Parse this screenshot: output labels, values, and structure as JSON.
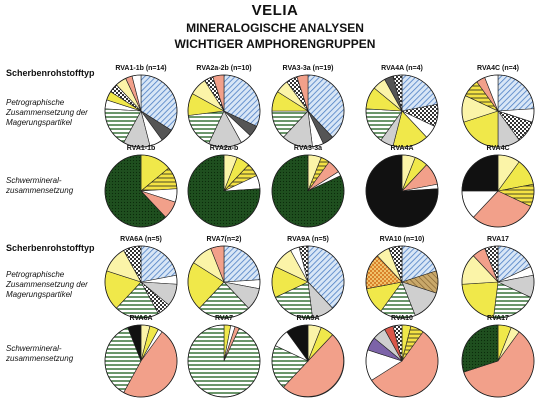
{
  "page": {
    "title": "VELIA",
    "subtitle1": "MINERALOGISCHE ANALYSEN",
    "subtitle2": "WICHTIGER AMPHORENGRUPPEN",
    "section_header": "Scherbenrohstofftyp",
    "row_labels": {
      "petro": [
        "Petrographische",
        "Zusammensetzung der",
        "Magerungspartikel"
      ],
      "heavy": [
        "Schwermineral-",
        "zusammensetzung"
      ]
    }
  },
  "legend_fills": {
    "blue_hatch": "#7fa6d8",
    "white": "#ffffff",
    "dark_green": "#1d4d1d",
    "green_stripe": "#5a8a5a",
    "gray": "#cfcfcf",
    "dark_gray": "#555555",
    "black": "#111111",
    "yellow": "#f0e84a",
    "pale_yellow": "#fbf4a8",
    "yellow_hatch": "#e3cf3a",
    "salmon": "#f2a08a",
    "orange": "#e59b3a",
    "check": "#8a8a8a",
    "tan": "#b8955a",
    "purple": "#7c63a8",
    "red": "#d9574a"
  },
  "chart_data": [
    {
      "type": "pie",
      "label": "RVA1-1b (n=14)",
      "slices": [
        {
          "fill": "blue_hatch",
          "value": 0.34
        },
        {
          "fill": "dark_gray",
          "value": 0.06
        },
        {
          "fill": "white",
          "value": 0.06
        },
        {
          "fill": "gray",
          "value": 0.12
        },
        {
          "fill": "green_stripe",
          "value": 0.18
        },
        {
          "fill": "white",
          "value": 0.04
        },
        {
          "fill": "yellow",
          "value": 0.04
        },
        {
          "fill": "check",
          "value": 0.04
        },
        {
          "fill": "pale_yellow",
          "value": 0.05
        },
        {
          "fill": "salmon",
          "value": 0.03
        },
        {
          "fill": "white",
          "value": 0.04
        }
      ]
    },
    {
      "type": "pie",
      "label": "RVA2a-2b (n=10)",
      "slices": [
        {
          "fill": "blue_hatch",
          "value": 0.32
        },
        {
          "fill": "dark_gray",
          "value": 0.05
        },
        {
          "fill": "white",
          "value": 0.05
        },
        {
          "fill": "gray",
          "value": 0.15
        },
        {
          "fill": "green_stripe",
          "value": 0.16
        },
        {
          "fill": "yellow",
          "value": 0.1
        },
        {
          "fill": "pale_yellow",
          "value": 0.08
        },
        {
          "fill": "check",
          "value": 0.04
        },
        {
          "fill": "salmon",
          "value": 0.05
        }
      ]
    },
    {
      "type": "pie",
      "label": "RVA3-3a (n=19)",
      "slices": [
        {
          "fill": "blue_hatch",
          "value": 0.38
        },
        {
          "fill": "dark_gray",
          "value": 0.05
        },
        {
          "fill": "white",
          "value": 0.05
        },
        {
          "fill": "gray",
          "value": 0.14
        },
        {
          "fill": "green_stripe",
          "value": 0.13
        },
        {
          "fill": "yellow",
          "value": 0.09
        },
        {
          "fill": "pale_yellow",
          "value": 0.06
        },
        {
          "fill": "check",
          "value": 0.05
        },
        {
          "fill": "salmon",
          "value": 0.05
        }
      ]
    },
    {
      "type": "pie",
      "label": "RVA4A (n=4)",
      "slices": [
        {
          "fill": "blue_hatch",
          "value": 0.22
        },
        {
          "fill": "check",
          "value": 0.1
        },
        {
          "fill": "white",
          "value": 0.06
        },
        {
          "fill": "yellow",
          "value": 0.16
        },
        {
          "fill": "gray",
          "value": 0.06
        },
        {
          "fill": "green_stripe",
          "value": 0.16
        },
        {
          "fill": "yellow",
          "value": 0.1
        },
        {
          "fill": "pale_yellow",
          "value": 0.06
        },
        {
          "fill": "dark_gray",
          "value": 0.04
        },
        {
          "fill": "check",
          "value": 0.04
        }
      ]
    },
    {
      "type": "pie",
      "label": "RVA4C (n=4)",
      "slices": [
        {
          "fill": "blue_hatch",
          "value": 0.24
        },
        {
          "fill": "white",
          "value": 0.06
        },
        {
          "fill": "check",
          "value": 0.1
        },
        {
          "fill": "gray",
          "value": 0.1
        },
        {
          "fill": "yellow",
          "value": 0.2
        },
        {
          "fill": "pale_yellow",
          "value": 0.12
        },
        {
          "fill": "yellow_hatch",
          "value": 0.08
        },
        {
          "fill": "salmon",
          "value": 0.04
        },
        {
          "fill": "white",
          "value": 0.06
        }
      ]
    },
    {
      "type": "pie",
      "label": "RVA1-1b",
      "slices": [
        {
          "fill": "yellow",
          "value": 0.14
        },
        {
          "fill": "yellow_hatch",
          "value": 0.1
        },
        {
          "fill": "white",
          "value": 0.06
        },
        {
          "fill": "salmon",
          "value": 0.08
        },
        {
          "fill": "dark_green",
          "value": 0.62
        }
      ]
    },
    {
      "type": "pie",
      "label": "RVA2a-b",
      "slices": [
        {
          "fill": "pale_yellow",
          "value": 0.06
        },
        {
          "fill": "yellow",
          "value": 0.06
        },
        {
          "fill": "yellow_hatch",
          "value": 0.06
        },
        {
          "fill": "white",
          "value": 0.06
        },
        {
          "fill": "dark_green",
          "value": 0.76
        }
      ]
    },
    {
      "type": "pie",
      "label": "RVA3-3a",
      "slices": [
        {
          "fill": "pale_yellow",
          "value": 0.06
        },
        {
          "fill": "yellow_hatch",
          "value": 0.04
        },
        {
          "fill": "salmon",
          "value": 0.06
        },
        {
          "fill": "white",
          "value": 0.02
        },
        {
          "fill": "dark_green",
          "value": 0.82
        }
      ]
    },
    {
      "type": "pie",
      "label": "RVA4A",
      "slices": [
        {
          "fill": "pale_yellow",
          "value": 0.06
        },
        {
          "fill": "yellow",
          "value": 0.06
        },
        {
          "fill": "salmon",
          "value": 0.1
        },
        {
          "fill": "white",
          "value": 0.02
        },
        {
          "fill": "black",
          "value": 0.76
        }
      ]
    },
    {
      "type": "pie",
      "label": "RVA4C",
      "slices": [
        {
          "fill": "pale_yellow",
          "value": 0.1
        },
        {
          "fill": "yellow",
          "value": 0.12
        },
        {
          "fill": "yellow_hatch",
          "value": 0.1
        },
        {
          "fill": "salmon",
          "value": 0.3
        },
        {
          "fill": "white",
          "value": 0.13
        },
        {
          "fill": "black",
          "value": 0.25
        }
      ]
    },
    {
      "type": "pie",
      "label": "RVA6A (n=5)",
      "slices": [
        {
          "fill": "blue_hatch",
          "value": 0.22
        },
        {
          "fill": "white",
          "value": 0.04
        },
        {
          "fill": "gray",
          "value": 0.1
        },
        {
          "fill": "check",
          "value": 0.06
        },
        {
          "fill": "green_stripe",
          "value": 0.2
        },
        {
          "fill": "yellow",
          "value": 0.18
        },
        {
          "fill": "pale_yellow",
          "value": 0.12
        },
        {
          "fill": "check",
          "value": 0.08
        }
      ]
    },
    {
      "type": "pie",
      "label": "RVA7(n=2)",
      "slices": [
        {
          "fill": "blue_hatch",
          "value": 0.24
        },
        {
          "fill": "white",
          "value": 0.04
        },
        {
          "fill": "gray",
          "value": 0.1
        },
        {
          "fill": "green_stripe",
          "value": 0.24
        },
        {
          "fill": "yellow",
          "value": 0.22
        },
        {
          "fill": "pale_yellow",
          "value": 0.1
        },
        {
          "fill": "salmon",
          "value": 0.06
        }
      ]
    },
    {
      "type": "pie",
      "label": "RVA9A (n=5)",
      "slices": [
        {
          "fill": "blue_hatch",
          "value": 0.38
        },
        {
          "fill": "gray",
          "value": 0.1
        },
        {
          "fill": "green_stripe",
          "value": 0.2
        },
        {
          "fill": "yellow",
          "value": 0.14
        },
        {
          "fill": "pale_yellow",
          "value": 0.1
        },
        {
          "fill": "white",
          "value": 0.04
        },
        {
          "fill": "check",
          "value": 0.04
        }
      ]
    },
    {
      "type": "pie",
      "label": "RVA10 (n=10)",
      "slices": [
        {
          "fill": "blue_hatch",
          "value": 0.2
        },
        {
          "fill": "tan",
          "value": 0.1
        },
        {
          "fill": "gray",
          "value": 0.14
        },
        {
          "fill": "green_stripe",
          "value": 0.16
        },
        {
          "fill": "yellow",
          "value": 0.12
        },
        {
          "fill": "orange",
          "value": 0.16
        },
        {
          "fill": "pale_yellow",
          "value": 0.06
        },
        {
          "fill": "check",
          "value": 0.06
        }
      ]
    },
    {
      "type": "pie",
      "label": "RVA17",
      "slices": [
        {
          "fill": "blue_hatch",
          "value": 0.18
        },
        {
          "fill": "white",
          "value": 0.04
        },
        {
          "fill": "gray",
          "value": 0.1
        },
        {
          "fill": "green_stripe",
          "value": 0.2
        },
        {
          "fill": "yellow",
          "value": 0.22
        },
        {
          "fill": "pale_yellow",
          "value": 0.14
        },
        {
          "fill": "salmon",
          "value": 0.06
        },
        {
          "fill": "check",
          "value": 0.06
        }
      ]
    },
    {
      "type": "pie",
      "label": "RVA6A",
      "slices": [
        {
          "fill": "pale_yellow",
          "value": 0.04
        },
        {
          "fill": "yellow",
          "value": 0.04
        },
        {
          "fill": "white",
          "value": 0.02
        },
        {
          "fill": "salmon",
          "value": 0.48
        },
        {
          "fill": "green_stripe",
          "value": 0.36
        },
        {
          "fill": "black",
          "value": 0.06
        }
      ]
    },
    {
      "type": "pie",
      "label": "RVA7",
      "slices": [
        {
          "fill": "yellow",
          "value": 0.03
        },
        {
          "fill": "white",
          "value": 0.02
        },
        {
          "fill": "salmon",
          "value": 0.02
        },
        {
          "fill": "green_stripe",
          "value": 0.93
        }
      ]
    },
    {
      "type": "pie",
      "label": "RVA9A",
      "slices": [
        {
          "fill": "pale_yellow",
          "value": 0.06
        },
        {
          "fill": "yellow",
          "value": 0.06
        },
        {
          "fill": "salmon",
          "value": 0.5
        },
        {
          "fill": "green_stripe",
          "value": 0.2
        },
        {
          "fill": "white",
          "value": 0.08
        },
        {
          "fill": "black",
          "value": 0.1
        }
      ]
    },
    {
      "type": "pie",
      "label": "RVA10",
      "slices": [
        {
          "fill": "yellow",
          "value": 0.04
        },
        {
          "fill": "yellow_hatch",
          "value": 0.06
        },
        {
          "fill": "salmon",
          "value": 0.56
        },
        {
          "fill": "white",
          "value": 0.14
        },
        {
          "fill": "purple",
          "value": 0.06
        },
        {
          "fill": "gray",
          "value": 0.06
        },
        {
          "fill": "red",
          "value": 0.04
        },
        {
          "fill": "check",
          "value": 0.04
        }
      ]
    },
    {
      "type": "pie",
      "label": "RVA17",
      "slices": [
        {
          "fill": "yellow",
          "value": 0.06
        },
        {
          "fill": "pale_yellow",
          "value": 0.04
        },
        {
          "fill": "salmon",
          "value": 0.6
        },
        {
          "fill": "dark_green",
          "value": 0.3
        }
      ]
    }
  ]
}
